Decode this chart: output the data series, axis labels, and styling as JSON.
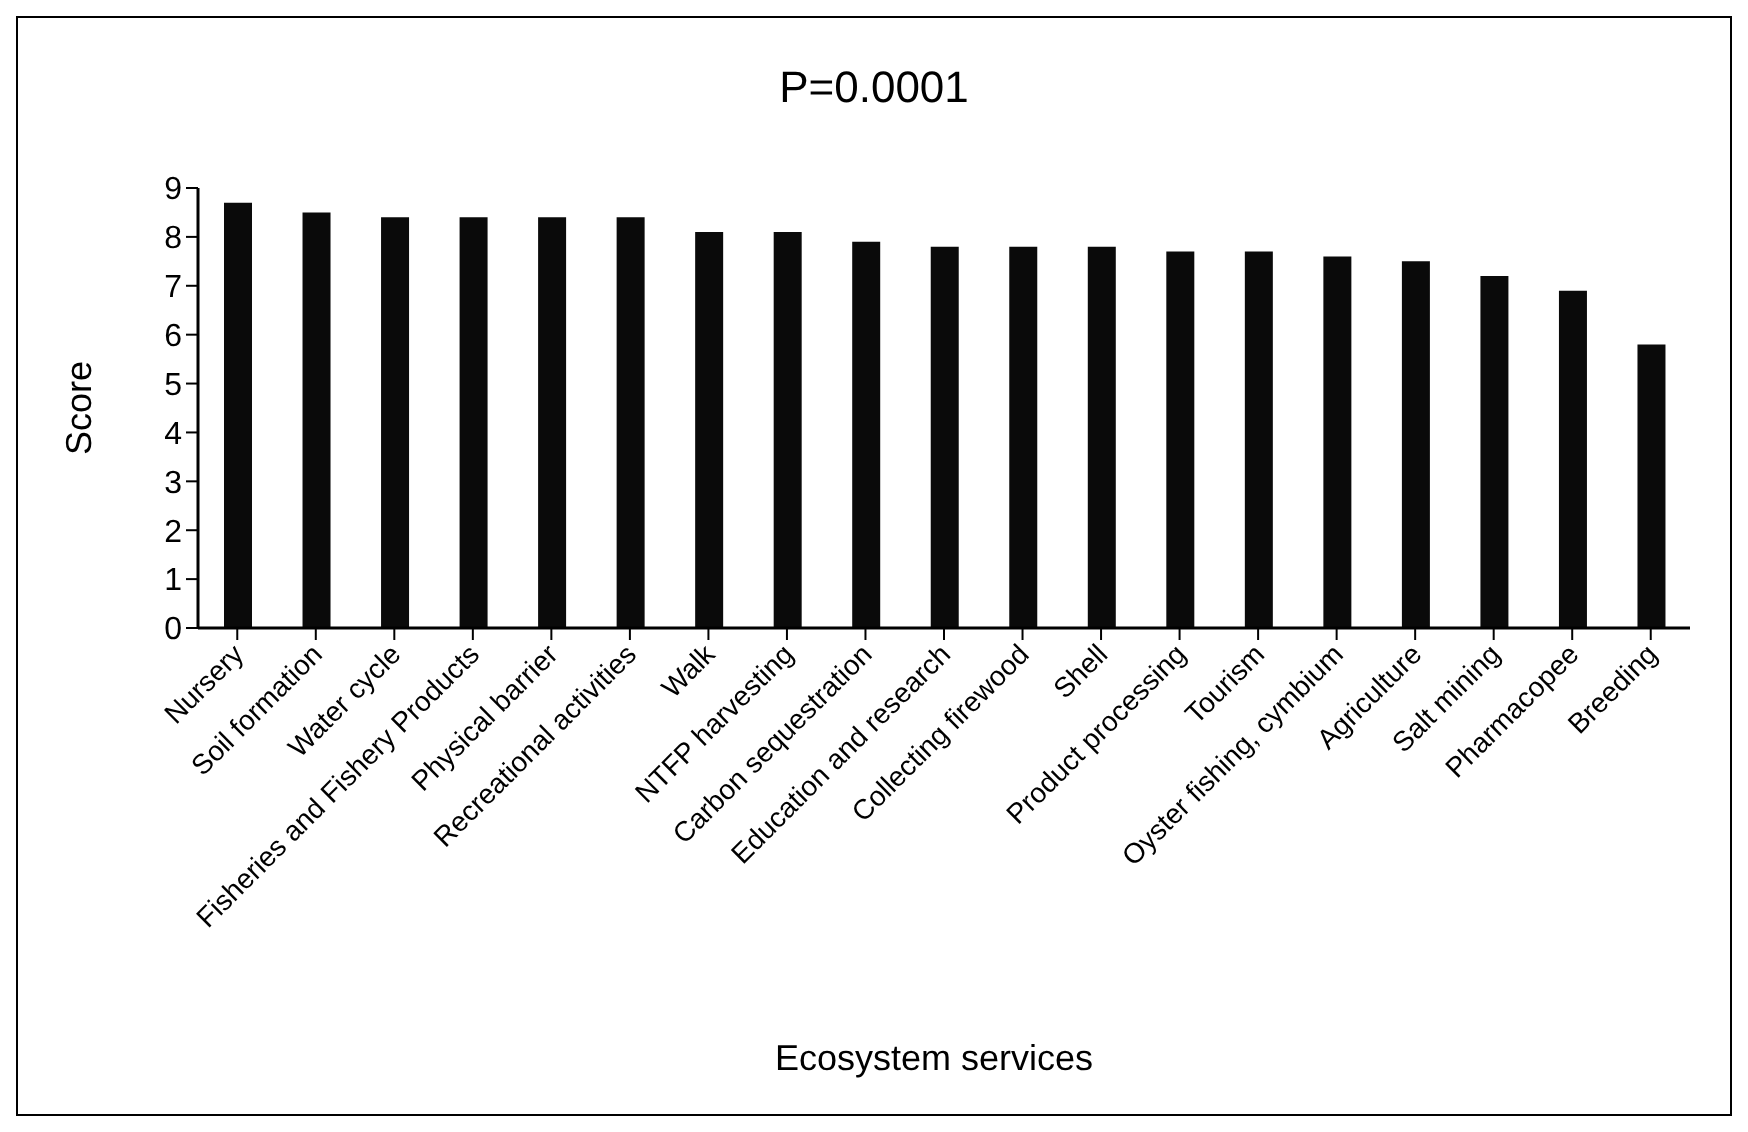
{
  "chart_data": {
    "type": "bar",
    "title": "P=0.0001",
    "xlabel": "Ecosystem services",
    "ylabel": "Score",
    "categories": [
      "Nursery",
      "Soil formation",
      "Water cycle",
      "Fisheries and Fishery Products",
      "Physical barrier",
      "Recreational activities",
      "Walk",
      "NTFP harvesting",
      "Carbon sequestration",
      "Education and research",
      "Collecting firewood",
      "Shell",
      "Product processing",
      "Tourism",
      "Oyster fishing, cymbium",
      "Agriculture",
      "Salt mining",
      "Pharmacopee",
      "Breeding"
    ],
    "values": [
      8.7,
      8.5,
      8.4,
      8.4,
      8.4,
      8.4,
      8.1,
      8.1,
      7.9,
      7.8,
      7.8,
      7.8,
      7.7,
      7.7,
      7.6,
      7.5,
      7.2,
      6.9,
      5.8
    ],
    "color": "#0a0a0a",
    "ylim": [
      0,
      9
    ],
    "yticks": [
      0,
      1,
      2,
      3,
      4,
      5,
      6,
      7,
      8,
      9
    ],
    "grid": false,
    "legend": false
  }
}
